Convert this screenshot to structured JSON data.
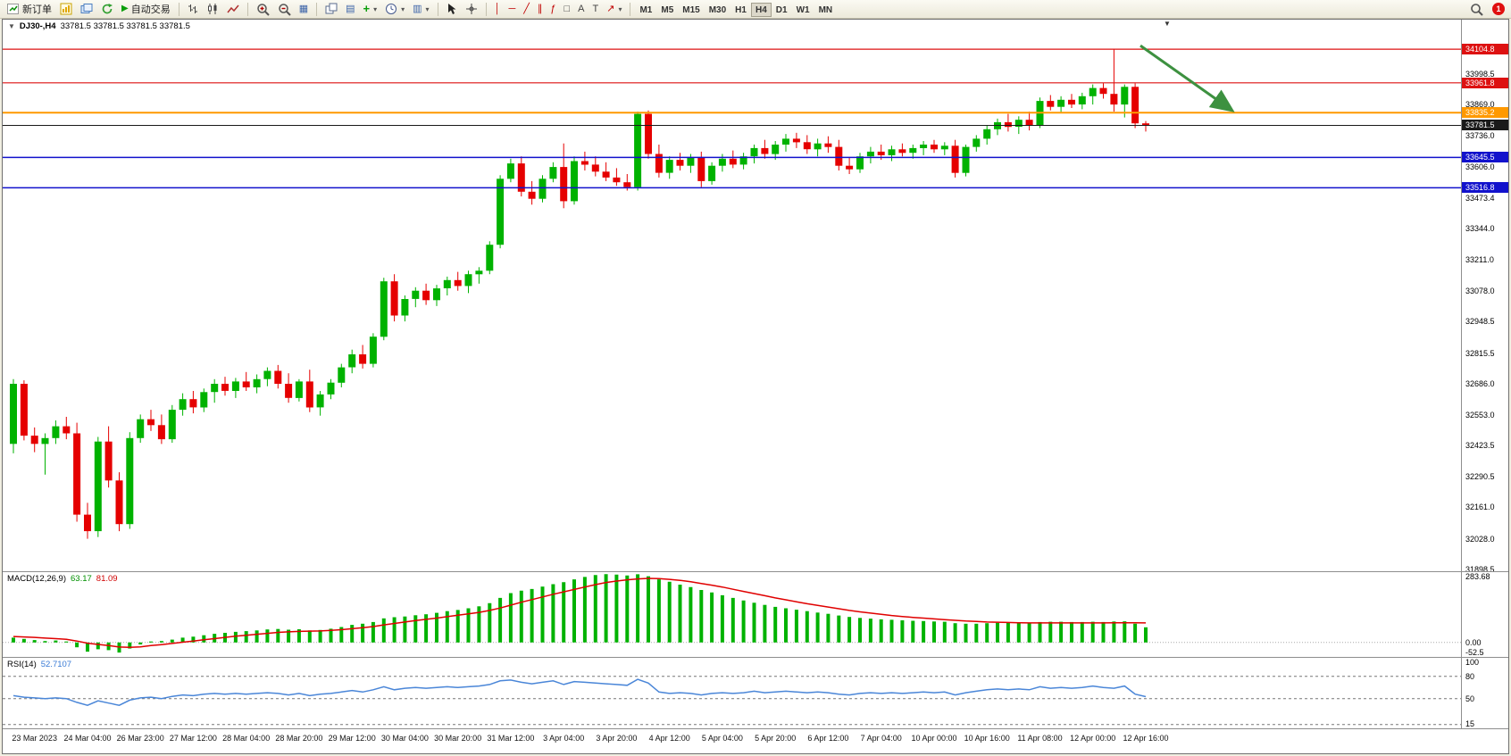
{
  "window": {
    "title": "DJ30-,H4",
    "ohlc": "33781.5 33781.5 33781.5 33781.5"
  },
  "toolbar": {
    "new_order_label": "新订单",
    "autotrading_label": "自动交易",
    "timeframes": [
      "M1",
      "M5",
      "M15",
      "M30",
      "H1",
      "H4",
      "D1",
      "W1",
      "MN"
    ],
    "active_timeframe": "H4",
    "notification_count": "1"
  },
  "icons": {
    "symbol_dropdown": "▼",
    "shift_marker": "▼",
    "autotrading_play": "▶",
    "tile_windows": "▦",
    "data_window": "▤",
    "template": "▥",
    "indicators_plus": "+",
    "dropdown": "▾",
    "vertical_line": "│",
    "horizontal_line": "─",
    "trendline": "╱",
    "channel": "∥",
    "fibonacci": "ƒ",
    "shapes": "□",
    "text_tool": "A",
    "label_tool": "T",
    "arrow_tool": "↗"
  },
  "colors": {
    "candle_up": "#00b200",
    "candle_down": "#e50000",
    "macd_histogram": "#00b200",
    "macd_signal": "#e00000",
    "rsi_line": "#4a86d8",
    "resistance": "#dd1111",
    "support": "#1212cc",
    "pivot": "#ff9900",
    "current_price_box": "#1a1a1a",
    "annotation_arrow": "#3d9140"
  },
  "chart_data": {
    "type": "candlestick",
    "symbol": "DJ30-",
    "timeframe": "H4",
    "current_price": 33781.5,
    "price_range": [
      31890,
      34230
    ],
    "price_axis_labels": [
      33998.5,
      33869.0,
      33736.0,
      33606.0,
      33473.4,
      33344.0,
      33211.0,
      33078.0,
      32948.5,
      32815.5,
      32686.0,
      32553.0,
      32423.5,
      32290.5,
      32161.0,
      32028.0,
      31898.5
    ],
    "price_lines": [
      {
        "name": "resistance-line-upper",
        "value": 34104.8,
        "color": "#dd1111",
        "line_width": 1.2
      },
      {
        "name": "resistance-line-lower",
        "value": 33961.8,
        "color": "#dd1111",
        "line_width": 1.2
      },
      {
        "name": "pivot-line",
        "value": 33835.2,
        "color": "#ff9900",
        "line_width": 2
      },
      {
        "name": "current-price-line",
        "value": 33781.5,
        "color": "#1a1a1a",
        "line_width": 1
      },
      {
        "name": "support-line-upper",
        "value": 33645.5,
        "color": "#1212cc",
        "line_width": 1.5
      },
      {
        "name": "support-line-lower",
        "value": 33516.8,
        "color": "#1212cc",
        "line_width": 1.5
      }
    ],
    "time_label_start_index": 2,
    "time_label_step": 5,
    "time_labels": [
      "23 Mar 2023",
      "24 Mar 04:00",
      "26 Mar 23:00",
      "27 Mar 12:00",
      "28 Mar 04:00",
      "28 Mar 20:00",
      "29 Mar 12:00",
      "30 Mar 04:00",
      "30 Mar 20:00",
      "31 Mar 12:00",
      "3 Apr 04:00",
      "3 Apr 20:00",
      "4 Apr 12:00",
      "5 Apr 04:00",
      "5 Apr 20:00",
      "6 Apr 12:00",
      "7 Apr 04:00",
      "10 Apr 00:00",
      "10 Apr 16:00",
      "11 Apr 08:00",
      "12 Apr 00:00",
      "12 Apr 16:00"
    ],
    "candles": [
      [
        32430,
        32705,
        32390,
        32685
      ],
      [
        32685,
        32700,
        32445,
        32465
      ],
      [
        32465,
        32500,
        32395,
        32430
      ],
      [
        32430,
        32475,
        32300,
        32455
      ],
      [
        32455,
        32530,
        32430,
        32505
      ],
      [
        32505,
        32545,
        32450,
        32475
      ],
      [
        32475,
        32520,
        32100,
        32130
      ],
      [
        32130,
        32180,
        32028,
        32060
      ],
      [
        32060,
        32460,
        32035,
        32440
      ],
      [
        32440,
        32505,
        32245,
        32275
      ],
      [
        32275,
        32310,
        32060,
        32090
      ],
      [
        32090,
        32480,
        32070,
        32455
      ],
      [
        32455,
        32555,
        32435,
        32535
      ],
      [
        32535,
        32575,
        32485,
        32510
      ],
      [
        32510,
        32555,
        32430,
        32450
      ],
      [
        32450,
        32595,
        32435,
        32575
      ],
      [
        32575,
        32645,
        32550,
        32620
      ],
      [
        32620,
        32655,
        32560,
        32585
      ],
      [
        32585,
        32665,
        32565,
        32650
      ],
      [
        32650,
        32705,
        32605,
        32685
      ],
      [
        32685,
        32715,
        32635,
        32655
      ],
      [
        32655,
        32710,
        32625,
        32695
      ],
      [
        32695,
        32735,
        32655,
        32670
      ],
      [
        32670,
        32725,
        32645,
        32705
      ],
      [
        32705,
        32755,
        32675,
        32740
      ],
      [
        32740,
        32765,
        32665,
        32685
      ],
      [
        32685,
        32730,
        32605,
        32625
      ],
      [
        32625,
        32705,
        32610,
        32695
      ],
      [
        32695,
        32745,
        32565,
        32585
      ],
      [
        32585,
        32655,
        32550,
        32640
      ],
      [
        32640,
        32705,
        32620,
        32690
      ],
      [
        32690,
        32770,
        32670,
        32755
      ],
      [
        32755,
        32830,
        32730,
        32810
      ],
      [
        32810,
        32850,
        32750,
        32770
      ],
      [
        32770,
        32900,
        32755,
        32885
      ],
      [
        32885,
        33135,
        32870,
        33120
      ],
      [
        33120,
        33150,
        32950,
        32975
      ],
      [
        32975,
        33060,
        32950,
        33045
      ],
      [
        33045,
        33095,
        33010,
        33080
      ],
      [
        33080,
        33110,
        33020,
        33040
      ],
      [
        33040,
        33105,
        33015,
        33090
      ],
      [
        33090,
        33140,
        33060,
        33125
      ],
      [
        33125,
        33160,
        33080,
        33100
      ],
      [
        33100,
        33165,
        33070,
        33150
      ],
      [
        33150,
        33180,
        33110,
        33165
      ],
      [
        33165,
        33290,
        33150,
        33275
      ],
      [
        33275,
        33570,
        33260,
        33555
      ],
      [
        33555,
        33640,
        33540,
        33620
      ],
      [
        33620,
        33650,
        33480,
        33500
      ],
      [
        33500,
        33545,
        33445,
        33470
      ],
      [
        33470,
        33570,
        33455,
        33555
      ],
      [
        33555,
        33625,
        33540,
        33605
      ],
      [
        33605,
        33705,
        33430,
        33460
      ],
      [
        33460,
        33650,
        33445,
        33630
      ],
      [
        33630,
        33670,
        33590,
        33615
      ],
      [
        33615,
        33650,
        33565,
        33585
      ],
      [
        33585,
        33625,
        33545,
        33560
      ],
      [
        33560,
        33600,
        33525,
        33540
      ],
      [
        33540,
        33575,
        33505,
        33520
      ],
      [
        33520,
        33840,
        33505,
        33830
      ],
      [
        33830,
        33845,
        33640,
        33660
      ],
      [
        33660,
        33700,
        33560,
        33580
      ],
      [
        33580,
        33650,
        33555,
        33635
      ],
      [
        33635,
        33665,
        33590,
        33610
      ],
      [
        33610,
        33660,
        33580,
        33645
      ],
      [
        33645,
        33670,
        33520,
        33545
      ],
      [
        33545,
        33625,
        33530,
        33610
      ],
      [
        33610,
        33660,
        33585,
        33640
      ],
      [
        33640,
        33675,
        33600,
        33615
      ],
      [
        33615,
        33665,
        33595,
        33650
      ],
      [
        33650,
        33700,
        33620,
        33685
      ],
      [
        33685,
        33720,
        33640,
        33660
      ],
      [
        33660,
        33715,
        33635,
        33700
      ],
      [
        33700,
        33745,
        33670,
        33725
      ],
      [
        33725,
        33750,
        33685,
        33710
      ],
      [
        33710,
        33740,
        33660,
        33680
      ],
      [
        33680,
        33725,
        33650,
        33705
      ],
      [
        33705,
        33735,
        33665,
        33690
      ],
      [
        33690,
        33720,
        33590,
        33610
      ],
      [
        33610,
        33645,
        33575,
        33595
      ],
      [
        33595,
        33665,
        33580,
        33650
      ],
      [
        33650,
        33690,
        33620,
        33670
      ],
      [
        33670,
        33700,
        33635,
        33655
      ],
      [
        33655,
        33695,
        33630,
        33680
      ],
      [
        33680,
        33705,
        33650,
        33665
      ],
      [
        33665,
        33700,
        33640,
        33685
      ],
      [
        33685,
        33715,
        33655,
        33700
      ],
      [
        33700,
        33720,
        33665,
        33680
      ],
      [
        33680,
        33710,
        33655,
        33695
      ],
      [
        33695,
        33720,
        33560,
        33580
      ],
      [
        33580,
        33700,
        33565,
        33690
      ],
      [
        33690,
        33740,
        33670,
        33725
      ],
      [
        33725,
        33780,
        33700,
        33765
      ],
      [
        33765,
        33810,
        33740,
        33795
      ],
      [
        33795,
        33830,
        33755,
        33775
      ],
      [
        33775,
        33820,
        33745,
        33805
      ],
      [
        33805,
        33840,
        33760,
        33780
      ],
      [
        33780,
        33900,
        33770,
        33885
      ],
      [
        33885,
        33910,
        33845,
        33860
      ],
      [
        33860,
        33905,
        33835,
        33890
      ],
      [
        33890,
        33915,
        33855,
        33870
      ],
      [
        33870,
        33920,
        33850,
        33905
      ],
      [
        33905,
        33955,
        33870,
        33940
      ],
      [
        33940,
        33960,
        33895,
        33915
      ],
      [
        33915,
        34105,
        33840,
        33870
      ],
      [
        33870,
        33955,
        33815,
        33945
      ],
      [
        33945,
        33960,
        33770,
        33790
      ],
      [
        33790,
        33800,
        33755,
        33781.5
      ]
    ],
    "indicators": {
      "macd": {
        "label": "MACD(12,26,9)",
        "macd_value": "63.17",
        "signal_value": "81.09",
        "range": [
          -60,
          292
        ],
        "axis": [
          {
            "label": "283.68",
            "value": 283.68
          },
          {
            "label": "0.00",
            "value": 0
          },
          {
            "label": "-52.5",
            "value": -52.5
          }
        ],
        "histogram": [
          20,
          15,
          10,
          6,
          8,
          4,
          -20,
          -38,
          -28,
          -32,
          -42,
          -25,
          -8,
          4,
          6,
          12,
          20,
          24,
          30,
          36,
          40,
          44,
          47,
          50,
          54,
          56,
          53,
          55,
          50,
          52,
          57,
          64,
          73,
          78,
          85,
          100,
          105,
          108,
          113,
          117,
          123,
          130,
          135,
          142,
          150,
          163,
          185,
          205,
          215,
          222,
          232,
          242,
          250,
          262,
          272,
          280,
          283.68,
          282,
          278,
          283,
          275,
          262,
          252,
          240,
          230,
          218,
          208,
          196,
          185,
          174,
          165,
          156,
          148,
          142,
          136,
          130,
          124,
          119,
          112,
          106,
          102,
          99,
          96,
          94,
          92,
          90,
          89,
          87,
          86,
          80,
          78,
          78,
          80,
          82,
          82,
          83,
          82,
          85,
          86,
          86,
          85,
          85,
          86,
          85,
          87,
          88,
          78,
          63.17
        ],
        "signal": [
          25,
          23,
          21,
          18,
          16,
          13,
          6,
          -3,
          -8,
          -13,
          -19,
          -20,
          -18,
          -13,
          -9,
          -4,
          1,
          6,
          11,
          16,
          21,
          26,
          30,
          34,
          38,
          42,
          44,
          46,
          47,
          48,
          50,
          53,
          57,
          61,
          66,
          73,
          79,
          85,
          91,
          96,
          101,
          107,
          113,
          119,
          125,
          133,
          143,
          155,
          167,
          178,
          189,
          200,
          210,
          220,
          230,
          240,
          249,
          255,
          260,
          264,
          266,
          265,
          262,
          258,
          252,
          245,
          238,
          230,
          221,
          212,
          203,
          194,
          185,
          177,
          169,
          161,
          154,
          147,
          140,
          133,
          127,
          122,
          117,
          112,
          108,
          104,
          101,
          98,
          95,
          92,
          89,
          87,
          85,
          84,
          83,
          82,
          81,
          81,
          81,
          81,
          81,
          81,
          81,
          81,
          82,
          82,
          82,
          81.09
        ]
      },
      "rsi": {
        "label": "RSI(14)",
        "value": "52.7107",
        "range": [
          10,
          105
        ],
        "axis": [
          {
            "label": "100",
            "value": 100
          },
          {
            "label": "80",
            "value": 80
          },
          {
            "label": "50",
            "value": 50
          },
          {
            "label": "15",
            "value": 15
          }
        ],
        "levels": [
          80,
          50,
          15
        ],
        "values": [
          54,
          52,
          51,
          50,
          51,
          50,
          45,
          41,
          47,
          44,
          41,
          48,
          51,
          52,
          50,
          53,
          55,
          54,
          56,
          57,
          56,
          57,
          56,
          57,
          58,
          57,
          55,
          57,
          54,
          56,
          57,
          59,
          61,
          59,
          62,
          66,
          62,
          64,
          65,
          64,
          65,
          66,
          65,
          66,
          67,
          69,
          74,
          75,
          72,
          70,
          72,
          74,
          69,
          73,
          72,
          71,
          70,
          69,
          68,
          76,
          71,
          59,
          57,
          58,
          57,
          55,
          57,
          58,
          57,
          58,
          60,
          58,
          59,
          60,
          59,
          58,
          59,
          58,
          56,
          55,
          57,
          58,
          57,
          58,
          57,
          58,
          59,
          58,
          59,
          55,
          58,
          60,
          62,
          63,
          62,
          63,
          62,
          66,
          64,
          65,
          64,
          65,
          67,
          65,
          64,
          67,
          56,
          52.71
        ]
      }
    },
    "annotations": [
      {
        "type": "arrow",
        "from_index": 106.5,
        "from_price": 34120,
        "to_index": 115,
        "to_price": 33850,
        "color": "#3d9140"
      }
    ]
  }
}
